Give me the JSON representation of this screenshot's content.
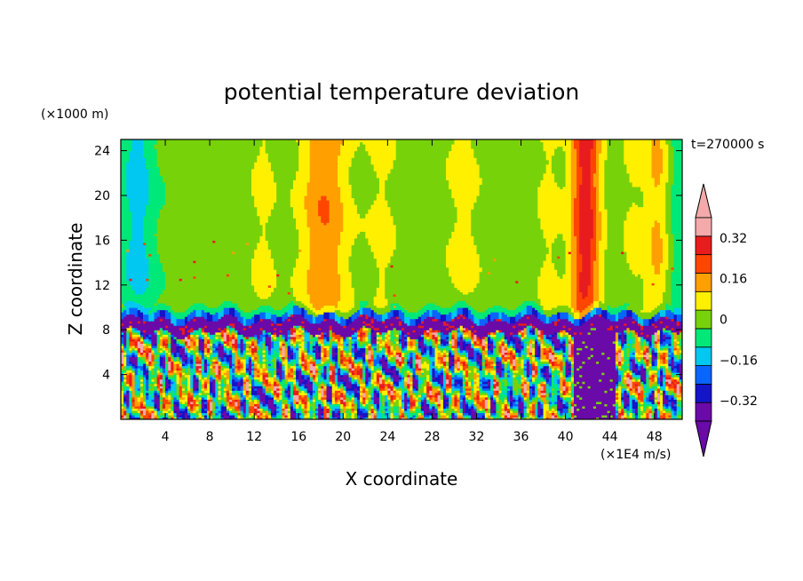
{
  "chart_data": {
    "type": "heatmap",
    "title": "potential temperature deviation",
    "xlabel": "X coordinate",
    "ylabel": "Z coordinate",
    "x_unit": "(×1E4 m/s)",
    "y_unit": "(×1000 m)",
    "time_label": "t=270000 s",
    "xlim": [
      0,
      50.5
    ],
    "ylim": [
      0,
      25
    ],
    "x_ticks": [
      4,
      8,
      12,
      16,
      20,
      24,
      28,
      32,
      36,
      40,
      44,
      48
    ],
    "y_ticks": [
      4,
      8,
      12,
      16,
      20,
      24
    ],
    "tropopause_height": 9,
    "colorbar": {
      "tick_labels": [
        "0.32",
        "0.16",
        "0",
        "-0.16",
        "-0.32"
      ],
      "tick_values": [
        0.32,
        0.16,
        0,
        -0.16,
        -0.32
      ],
      "levels": [
        -0.4,
        -0.32,
        -0.24,
        -0.16,
        -0.08,
        0,
        0.08,
        0.16,
        0.24,
        0.32,
        0.4
      ],
      "colors": [
        "#6a0aa8",
        "#1414c8",
        "#0a64ff",
        "#00c8f0",
        "#00e878",
        "#78d20a",
        "#fff000",
        "#ffa000",
        "#ff4600",
        "#e81c1c",
        "#f4aaaa"
      ],
      "under_color": "#6a0aa8",
      "over_color": "#f4aaaa"
    },
    "upper_features": [
      {
        "x_center": 18.3,
        "amplitude": 0.2,
        "width": 2.2
      },
      {
        "x_center": 41.8,
        "amplitude": 0.34,
        "width": 1.3
      },
      {
        "x_center": 48.6,
        "amplitude": 0.18,
        "width": 1.4
      },
      {
        "x_center": 1.5,
        "amplitude": -0.14,
        "width": 1.6
      },
      {
        "x_center": 12.8,
        "amplitude": 0.07,
        "width": 1.2
      },
      {
        "x_center": 23.5,
        "amplitude": 0.07,
        "width": 1.4
      },
      {
        "x_center": 30.8,
        "amplitude": 0.08,
        "width": 1.6
      },
      {
        "x_center": 38.5,
        "amplitude": 0.07,
        "width": 1.2
      },
      {
        "x_center": 46.0,
        "amplitude": 0.06,
        "width": 1.0
      },
      {
        "x_center": 49.7,
        "amplitude": -0.14,
        "width": 1.2
      }
    ]
  }
}
